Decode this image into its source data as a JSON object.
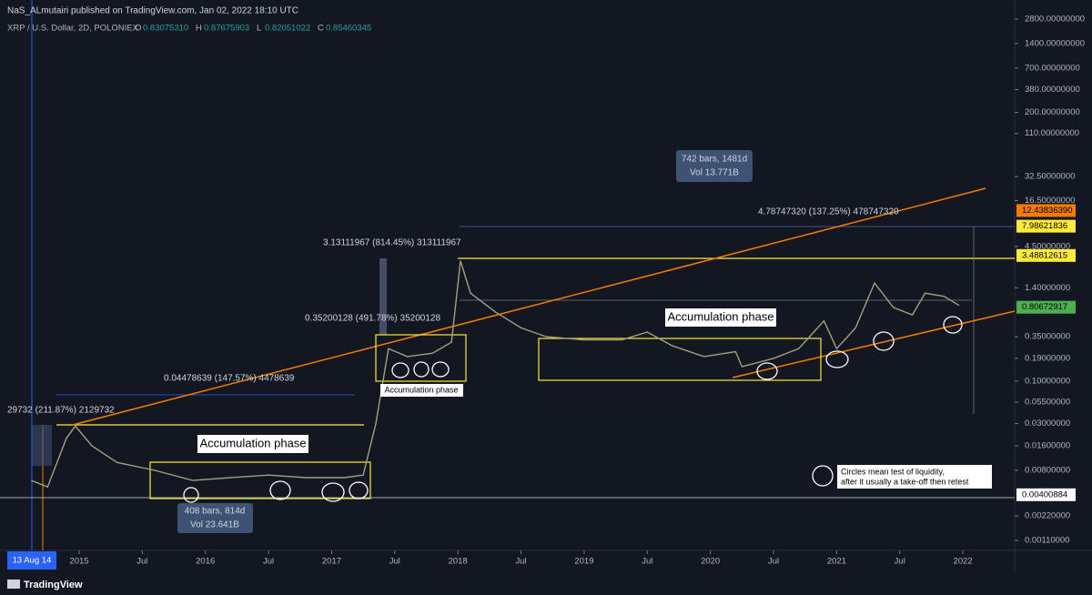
{
  "header": {
    "publisher": "NaS_ALmutairi published on TradingView.com, Jan 02, 2022 18:10 UTC",
    "symbol": "XRP / U.S. Dollar, 2D, POLONIEX",
    "ohlc": [
      {
        "key": "O",
        "value": "0.83075310"
      },
      {
        "key": "H",
        "value": "0.87675903"
      },
      {
        "key": "L",
        "value": "0.82051022"
      },
      {
        "key": "C",
        "value": "0.85460345"
      }
    ]
  },
  "chart_data": {
    "type": "line",
    "log_scale": true,
    "xlim": [
      2014.373,
      2022.41
    ],
    "ylim": [
      0.00083,
      4800
    ],
    "xticks": [
      2015,
      {
        "value": 2015.5,
        "label": "Jul"
      },
      2016,
      {
        "value": 2016.5,
        "label": "Jul"
      },
      2017,
      {
        "value": 2017.5,
        "label": "Jul"
      },
      2018,
      {
        "value": 2018.5,
        "label": "Jul"
      },
      2019,
      {
        "value": 2019.5,
        "label": "Jul"
      },
      2020,
      {
        "value": 2020.5,
        "label": "Jul"
      },
      2021,
      {
        "value": 2021.5,
        "label": "Jul"
      },
      2022
    ],
    "yticks": [
      {
        "value": 2800,
        "label": "2800.00000000"
      },
      {
        "value": 1400,
        "label": "1400.00000000"
      },
      {
        "value": 700,
        "label": "700.00000000"
      },
      {
        "value": 380,
        "label": "380.00000000"
      },
      {
        "value": 200,
        "label": "200.00000000"
      },
      {
        "value": 110,
        "label": "110.00000000"
      },
      {
        "value": 32.5,
        "label": "32.50000000"
      },
      {
        "value": 16.5,
        "label": "16.50000000"
      },
      {
        "value": 4.5,
        "label": "4.50000000"
      },
      {
        "value": 1.4,
        "label": "1.40000000"
      },
      {
        "value": 0.35,
        "label": "0.35000000"
      },
      {
        "value": 0.19,
        "label": "0.19000000"
      },
      {
        "value": 0.1,
        "label": "0.10000000"
      },
      {
        "value": 0.055,
        "label": "0.05500000"
      },
      {
        "value": 0.03,
        "label": "0.03000000"
      },
      {
        "value": 0.016,
        "label": "0.01600000"
      },
      {
        "value": 0.008,
        "label": "0.00800000"
      },
      {
        "value": 0.0022,
        "label": "0.00220000"
      },
      {
        "value": 0.0011,
        "label": "0.00110000"
      }
    ],
    "price_labels": [
      {
        "value": 12.4383639,
        "label": "12.43836390",
        "color": "#f57c00"
      },
      {
        "value": 7.98621836,
        "label": "7.98621836",
        "color": "#ffeb3b"
      },
      {
        "value": 3.48812615,
        "label": "3.48812615",
        "color": "#ffeb3b"
      },
      {
        "value": 0.80672917,
        "label": "0.80672917",
        "color": "#4caf50"
      },
      {
        "value": 0.00400884,
        "label": "0.00400884",
        "color": "#ffffff"
      }
    ],
    "series": [
      {
        "color": "#9fa37a",
        "x": [
          2014.62,
          2014.75,
          2014.9,
          2014.97,
          2015.1,
          2015.3,
          2015.6,
          2015.9,
          2016.2,
          2016.5,
          2016.8,
          2017.1,
          2017.25,
          2017.35,
          2017.45,
          2017.6,
          2017.8,
          2017.95,
          2018.02,
          2018.1,
          2018.3,
          2018.5,
          2018.7,
          2019.0,
          2019.3,
          2019.5,
          2019.7,
          2019.95,
          2020.2,
          2020.25,
          2020.5,
          2020.7,
          2020.9,
          2021.0,
          2021.15,
          2021.3,
          2021.45,
          2021.6,
          2021.7,
          2021.85,
          2021.97
        ],
        "values": [
          0.006,
          0.005,
          0.02,
          0.028,
          0.016,
          0.01,
          0.008,
          0.006,
          0.0065,
          0.007,
          0.0065,
          0.0065,
          0.007,
          0.03,
          0.25,
          0.2,
          0.22,
          0.3,
          3.0,
          1.2,
          0.7,
          0.45,
          0.35,
          0.32,
          0.32,
          0.4,
          0.27,
          0.2,
          0.23,
          0.15,
          0.19,
          0.25,
          0.55,
          0.25,
          0.45,
          1.6,
          0.8,
          0.65,
          1.2,
          1.1,
          0.85
        ]
      }
    ]
  },
  "annotations": {
    "start_date": "13 Aug 14",
    "measure_1": "29732 (211.87%) 2129732",
    "measure_2": "0.04478639 (147.57%) 4478639",
    "measure_3": "0.35200128 (491.78%) 35200128",
    "measure_4": "3.13111967 (814.45%) 313111967",
    "measure_5": "4.78747320 (137.25%) 478747320",
    "phase_1": "Accumulation phase",
    "phase_2": "Accumulation phase",
    "phase_3": "Accumulation phase",
    "range_1": [
      "408 bars, 814d",
      "Vol 23.641B"
    ],
    "range_2": [
      "742 bars, 1481d",
      "Vol 13.771B"
    ],
    "note": [
      "Circles mean test of liquidity,",
      "after it usually a take-off then retest"
    ]
  },
  "footer": {
    "brand": "TradingView"
  }
}
